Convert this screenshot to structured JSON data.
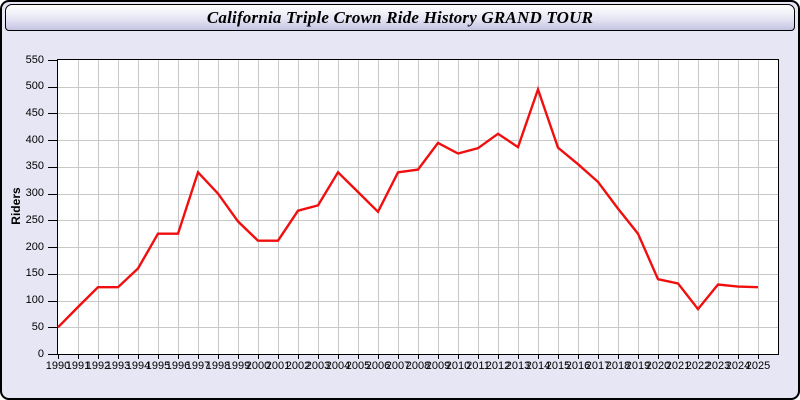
{
  "window": {
    "title": "California Triple Crown Ride History GRAND TOUR"
  },
  "colors": {
    "window_bg": "#e6e6f5",
    "plot_bg": "#ffffff",
    "grid": "#c8c8c8",
    "border": "#000000",
    "header_gradient_top": "#ffffff",
    "header_gradient_mid": "#e6e6f4",
    "header_gradient_bottom": "#c3c3e2",
    "line": "#f10e0e"
  },
  "chart_data": {
    "type": "line",
    "title": "California Triple Crown Ride History GRAND TOUR",
    "xlabel": "",
    "ylabel": "Riders",
    "ylim": [
      0,
      550
    ],
    "yticks": [
      0,
      50,
      100,
      150,
      200,
      250,
      300,
      350,
      400,
      450,
      500,
      550
    ],
    "grid": true,
    "legend_position": "none",
    "x": [
      1990,
      1991,
      1992,
      1993,
      1994,
      1995,
      1996,
      1997,
      1998,
      1999,
      2000,
      2001,
      2002,
      2003,
      2004,
      2005,
      2006,
      2007,
      2008,
      2009,
      2010,
      2011,
      2012,
      2013,
      2014,
      2015,
      2016,
      2017,
      2018,
      2019,
      2020,
      2021,
      2022,
      2023,
      2024,
      2025
    ],
    "series": [
      {
        "name": "Riders",
        "color": "#f10e0e",
        "values": [
          50,
          88,
          125,
          125,
          160,
          225,
          225,
          340,
          300,
          248,
          212,
          212,
          268,
          278,
          340,
          303,
          266,
          340,
          345,
          395,
          375,
          385,
          412,
          387,
          495,
          386,
          355,
          322,
          272,
          225,
          140,
          132,
          84,
          130,
          126,
          125
        ]
      }
    ]
  }
}
